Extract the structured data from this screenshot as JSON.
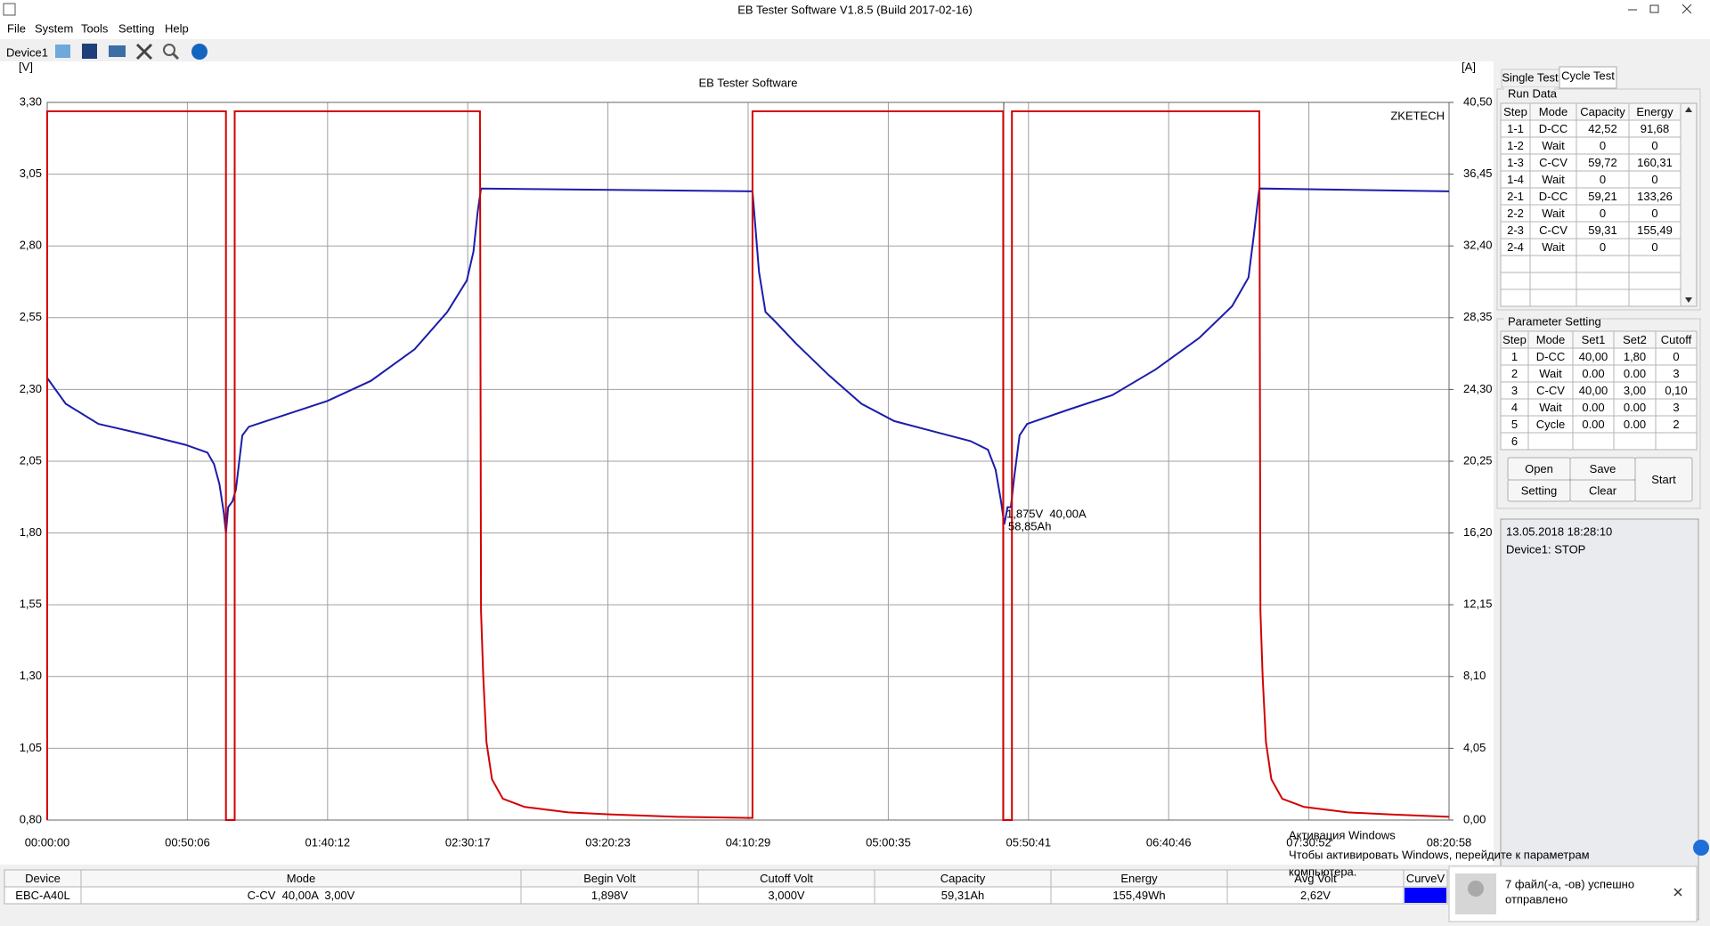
{
  "window": {
    "title": "EB Tester Software V1.8.5 (Build 2017-02-16)"
  },
  "menu": [
    "File",
    "System",
    "Tools",
    "Setting",
    "Help"
  ],
  "toolbar": {
    "device": "Device1"
  },
  "chart_data": {
    "type": "line",
    "title": "EB Tester Software",
    "watermark": "ZKETECH",
    "y_label": "[V]",
    "y2_label": "[A]",
    "xlim": [
      0,
      30058
    ],
    "xticks": [
      {
        "value": 0,
        "label": "00:00:00"
      },
      {
        "value": 3006,
        "label": "00:50:06"
      },
      {
        "value": 6012,
        "label": "01:40:12"
      },
      {
        "value": 9017,
        "label": "02:30:17"
      },
      {
        "value": 12023,
        "label": "03:20:23"
      },
      {
        "value": 15029,
        "label": "04:10:29"
      },
      {
        "value": 18035,
        "label": "05:00:35"
      },
      {
        "value": 21041,
        "label": "05:50:41"
      },
      {
        "value": 24046,
        "label": "06:40:46"
      },
      {
        "value": 27052,
        "label": "07:30:52"
      },
      {
        "value": 30058,
        "label": "08:20:58"
      }
    ],
    "ylim": [
      0.8,
      3.3
    ],
    "yticks": [
      {
        "value": 0.8,
        "label": "0,80"
      },
      {
        "value": 1.05,
        "label": "1,05"
      },
      {
        "value": 1.3,
        "label": "1,30"
      },
      {
        "value": 1.55,
        "label": "1,55"
      },
      {
        "value": 1.8,
        "label": "1,80"
      },
      {
        "value": 2.05,
        "label": "2,05"
      },
      {
        "value": 2.3,
        "label": "2,30"
      },
      {
        "value": 2.55,
        "label": "2,55"
      },
      {
        "value": 2.8,
        "label": "2,80"
      },
      {
        "value": 3.05,
        "label": "3,05"
      },
      {
        "value": 3.3,
        "label": "3,30"
      }
    ],
    "y2lim": [
      0,
      40.5
    ],
    "y2ticks": [
      {
        "value": 0,
        "label": "0,00"
      },
      {
        "value": 4.05,
        "label": "4,05"
      },
      {
        "value": 8.1,
        "label": "8,10"
      },
      {
        "value": 12.15,
        "label": "12,15"
      },
      {
        "value": 16.2,
        "label": "16,20"
      },
      {
        "value": 20.25,
        "label": "20,25"
      },
      {
        "value": 24.3,
        "label": "24,30"
      },
      {
        "value": 28.35,
        "label": "28,35"
      },
      {
        "value": 32.4,
        "label": "32,40"
      },
      {
        "value": 36.45,
        "label": "36,45"
      },
      {
        "value": 40.5,
        "label": "40,50"
      }
    ],
    "grid": true,
    "series": [
      {
        "color": "#1c1cab",
        "x": [
          0,
          397,
          1099,
          2033,
          2968,
          3436,
          3576,
          3693,
          3786,
          3833,
          3880,
          3973,
          4044,
          4184,
          4324,
          5072,
          6007,
          6942,
          7877,
          8578,
          8999,
          9139,
          9232,
          9302,
          15122,
          15169,
          15262,
          15402,
          15589,
          16057,
          16758,
          17460,
          18161,
          19096,
          19797,
          20171,
          20335,
          20452,
          20522,
          20592,
          20662,
          20732,
          20849,
          21012,
          21901,
          22835,
          23770,
          24705,
          25406,
          25757,
          25874,
          25991,
          30058
        ],
        "values": [
          2.34,
          2.25,
          2.18,
          2.145,
          2.107,
          2.08,
          2.04,
          1.97,
          1.87,
          1.8,
          1.89,
          1.91,
          1.95,
          2.14,
          2.17,
          2.21,
          2.26,
          2.33,
          2.44,
          2.57,
          2.68,
          2.78,
          2.92,
          3.0,
          2.99,
          2.9,
          2.71,
          2.57,
          2.54,
          2.46,
          2.35,
          2.25,
          2.19,
          2.15,
          2.12,
          2.09,
          2.02,
          1.91,
          1.83,
          1.89,
          1.89,
          1.99,
          2.14,
          2.18,
          2.23,
          2.28,
          2.37,
          2.48,
          2.59,
          2.69,
          2.84,
          3.0,
          2.99
        ]
      },
      {
        "color": "#d40000",
        "axis": "y2",
        "x": [
          0,
          0,
          3833,
          3833,
          4020,
          4020,
          9279,
          9302,
          9349,
          9419,
          9536,
          9770,
          10237,
          11172,
          12107,
          13509,
          15075,
          15122,
          15122,
          20498,
          20498,
          20685,
          20685,
          25991,
          26014,
          26061,
          26131,
          26248,
          26482,
          26950,
          27885,
          28820,
          30058
        ],
        "values": [
          0,
          40,
          40,
          0,
          0,
          40,
          40,
          11.8,
          8.1,
          4.4,
          2.3,
          1.2,
          0.74,
          0.43,
          0.31,
          0.18,
          0.12,
          0.12,
          40,
          40,
          0,
          0,
          40,
          40,
          11.8,
          8.1,
          4.4,
          2.3,
          1.2,
          0.74,
          0.43,
          0.31,
          0.18
        ]
      }
    ],
    "annotations": [
      "1,875V  40,00A",
      "58,85Ah"
    ]
  },
  "tabs": [
    "Single Test",
    "Cycle Test"
  ],
  "run_data": {
    "title": "Run Data",
    "columns": [
      "Step",
      "Mode",
      "Capacity",
      "Energy"
    ],
    "rows": [
      [
        "1-1",
        "D-CC",
        "42,52",
        "91,68"
      ],
      [
        "1-2",
        "Wait",
        "0",
        "0"
      ],
      [
        "1-3",
        "C-CV",
        "59,72",
        "160,31"
      ],
      [
        "1-4",
        "Wait",
        "0",
        "0"
      ],
      [
        "2-1",
        "D-CC",
        "59,21",
        "133,26"
      ],
      [
        "2-2",
        "Wait",
        "0",
        "0"
      ],
      [
        "2-3",
        "C-CV",
        "59,31",
        "155,49"
      ],
      [
        "2-4",
        "Wait",
        "0",
        "0"
      ]
    ]
  },
  "parameter_setting": {
    "title": "Parameter Setting",
    "columns": [
      "Step",
      "Mode",
      "Set1",
      "Set2",
      "Cutoff"
    ],
    "rows": [
      [
        "1",
        "D-CC",
        "40,00",
        "1,80",
        "0"
      ],
      [
        "2",
        "Wait",
        "0.00",
        "0.00",
        "3"
      ],
      [
        "3",
        "C-CV",
        "40,00",
        "3,00",
        "0,10"
      ],
      [
        "4",
        "Wait",
        "0.00",
        "0.00",
        "3"
      ],
      [
        "5",
        "Cycle",
        "0.00",
        "0.00",
        "2"
      ],
      [
        "6"
      ]
    ]
  },
  "buttons": [
    "Open",
    "Save",
    "Setting",
    "Clear",
    "Start"
  ],
  "status": {
    "datetime": "13.05.2018 18:28:10",
    "device": "Device1: STOP"
  },
  "summary_table": {
    "columns": [
      "Device",
      "Mode",
      "Begin Volt",
      "Cutoff Volt",
      "Capacity",
      "Energy",
      "Avg Volt",
      "CurveV"
    ],
    "rows": [
      [
        "EBC-A40L",
        "C-CV  40,00A  3,00V",
        "1,898V",
        "3,000V",
        "59,31Ah",
        "155,49Wh",
        "2,62V"
      ]
    ]
  },
  "watermark": {
    "title": "Активация Windows",
    "line1": "Чтобы активировать Windows, перейдите к параметрам",
    "line2": "компьютера."
  },
  "notification": {
    "lines": [
      "7 файл(-а, -ов) успешно",
      "отправлено"
    ]
  }
}
